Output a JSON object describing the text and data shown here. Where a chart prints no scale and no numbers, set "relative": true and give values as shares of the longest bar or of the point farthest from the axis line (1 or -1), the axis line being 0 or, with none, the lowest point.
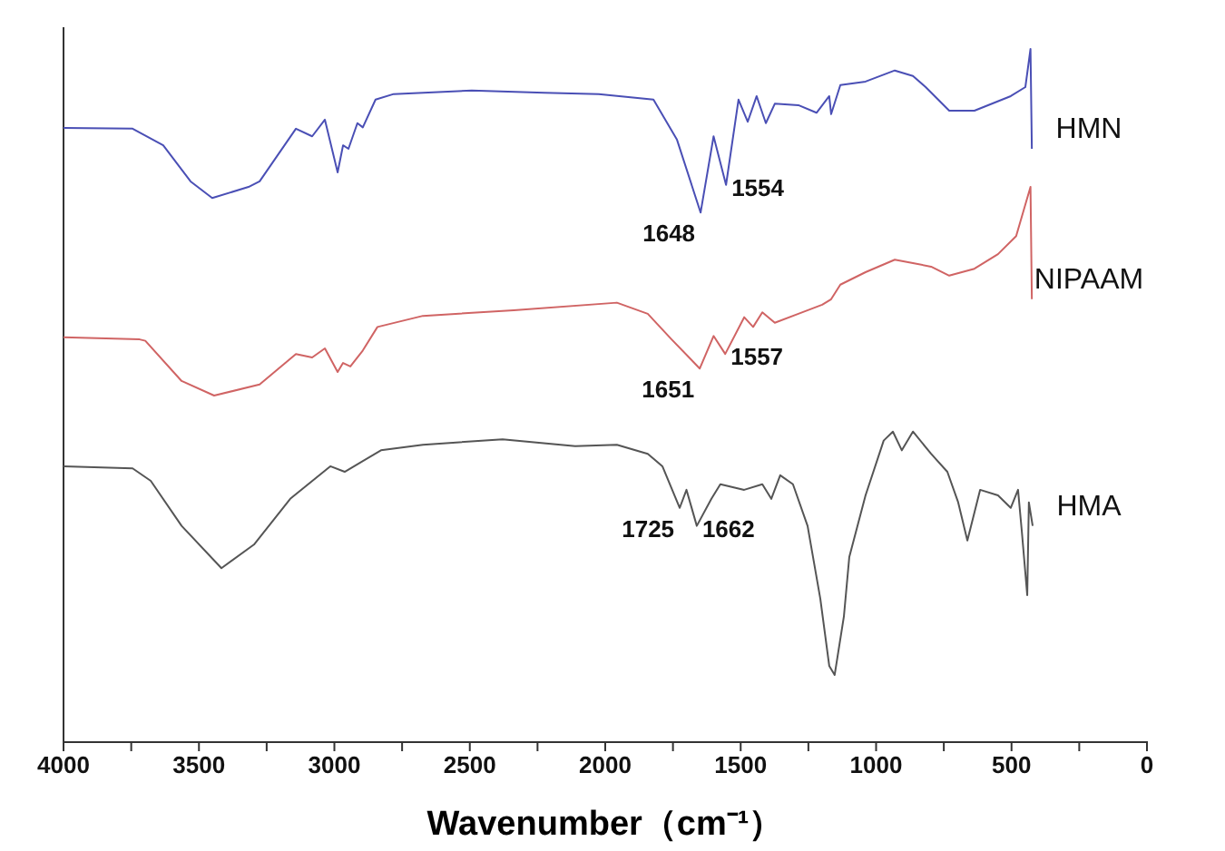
{
  "chart_data": {
    "type": "line",
    "relative": true,
    "xlabel": "Wavenumber（cm⁻¹）",
    "xlim": [
      4000,
      0
    ],
    "xticks": [
      4000,
      {
        "value": 3750,
        "label": null
      },
      3500,
      {
        "value": 3250,
        "label": null
      },
      3000,
      {
        "value": 2750,
        "label": null
      },
      2500,
      {
        "value": 2250,
        "label": null
      },
      2000,
      {
        "value": 1750,
        "label": null
      },
      1500,
      {
        "value": 1250,
        "label": null
      },
      1000,
      {
        "value": 750,
        "label": null
      },
      500,
      {
        "value": 250,
        "label": null
      },
      0
    ],
    "grid": false,
    "legend": false,
    "marker": "none",
    "line_style": "solid",
    "series": [
      {
        "name": "HMN",
        "color": "#4a4fb5",
        "x": [
          4000,
          3745,
          3632,
          3531,
          3451,
          3317,
          3276,
          3142,
          3082,
          3035,
          2988,
          2968,
          2948,
          2915,
          2895,
          2848,
          2781,
          2493,
          2225,
          2024,
          1822,
          1735,
          1648,
          1600,
          1554,
          1508,
          1474,
          1441,
          1407,
          1374,
          1287,
          1220,
          1173,
          1166,
          1132,
          1039,
          931,
          864,
          817,
          730,
          637,
          503,
          449,
          430,
          425
        ],
        "values": [
          0.886,
          0.885,
          0.861,
          0.809,
          0.785,
          0.801,
          0.809,
          0.885,
          0.874,
          0.898,
          0.822,
          0.861,
          0.856,
          0.893,
          0.887,
          0.927,
          0.935,
          0.94,
          0.937,
          0.935,
          0.927,
          0.869,
          0.764,
          0.874,
          0.804,
          0.927,
          0.895,
          0.932,
          0.893,
          0.921,
          0.919,
          0.908,
          0.932,
          0.906,
          0.948,
          0.953,
          0.969,
          0.961,
          0.945,
          0.911,
          0.911,
          0.932,
          0.945,
          1,
          0.856
        ]
      },
      {
        "name": "NIPAAM",
        "color": "#d06464",
        "x": [
          4000,
          3719,
          3698,
          3564,
          3444,
          3276,
          3142,
          3082,
          3035,
          2988,
          2968,
          2941,
          2895,
          2841,
          2673,
          2338,
          1957,
          1843,
          1755,
          1651,
          1600,
          1557,
          1487,
          1454,
          1420,
          1374,
          1287,
          1199,
          1166,
          1132,
          1039,
          931,
          864,
          797,
          730,
          637,
          550,
          483,
          430,
          425
        ],
        "values": [
          0.584,
          0.581,
          0.579,
          0.521,
          0.5,
          0.516,
          0.56,
          0.555,
          0.568,
          0.534,
          0.547,
          0.542,
          0.565,
          0.599,
          0.615,
          0.623,
          0.634,
          0.618,
          0.581,
          0.539,
          0.586,
          0.56,
          0.613,
          0.599,
          0.62,
          0.605,
          0.618,
          0.631,
          0.639,
          0.66,
          0.678,
          0.696,
          0.691,
          0.686,
          0.673,
          0.683,
          0.704,
          0.73,
          0.801,
          0.639
        ]
      },
      {
        "name": "HMA",
        "color": "#555555",
        "x": [
          4000,
          3745,
          3678,
          3564,
          3417,
          3297,
          3163,
          3015,
          2962,
          2828,
          2673,
          2379,
          2111,
          1957,
          1843,
          1789,
          1725,
          1700,
          1662,
          1608,
          1575,
          1487,
          1420,
          1387,
          1354,
          1307,
          1253,
          1206,
          1173,
          1153,
          1119,
          1099,
          1039,
          972,
          938,
          905,
          864,
          797,
          737,
          697,
          663,
          616,
          550,
          503,
          476,
          462,
          442,
          436,
          422
        ],
        "values": [
          0.398,
          0.395,
          0.377,
          0.312,
          0.251,
          0.285,
          0.351,
          0.398,
          0.39,
          0.421,
          0.429,
          0.437,
          0.427,
          0.429,
          0.416,
          0.398,
          0.338,
          0.364,
          0.312,
          0.351,
          0.372,
          0.364,
          0.372,
          0.351,
          0.385,
          0.372,
          0.312,
          0.207,
          0.11,
          0.097,
          0.181,
          0.267,
          0.356,
          0.435,
          0.448,
          0.421,
          0.448,
          0.416,
          0.39,
          0.346,
          0.291,
          0.364,
          0.356,
          0.338,
          0.364,
          0.304,
          0.212,
          0.346,
          0.312
        ]
      }
    ],
    "annotations": [
      {
        "text": "1648",
        "x": 1648,
        "y": 0.764
      },
      {
        "text": "1554",
        "x": 1554,
        "y": 0.804
      },
      {
        "text": "1651",
        "x": 1651,
        "y": 0.539
      },
      {
        "text": "1557",
        "x": 1557,
        "y": 0.56
      },
      {
        "text": "1725",
        "x": 1725,
        "y": 0.338
      },
      {
        "text": "1662",
        "x": 1662,
        "y": 0.312
      }
    ]
  }
}
